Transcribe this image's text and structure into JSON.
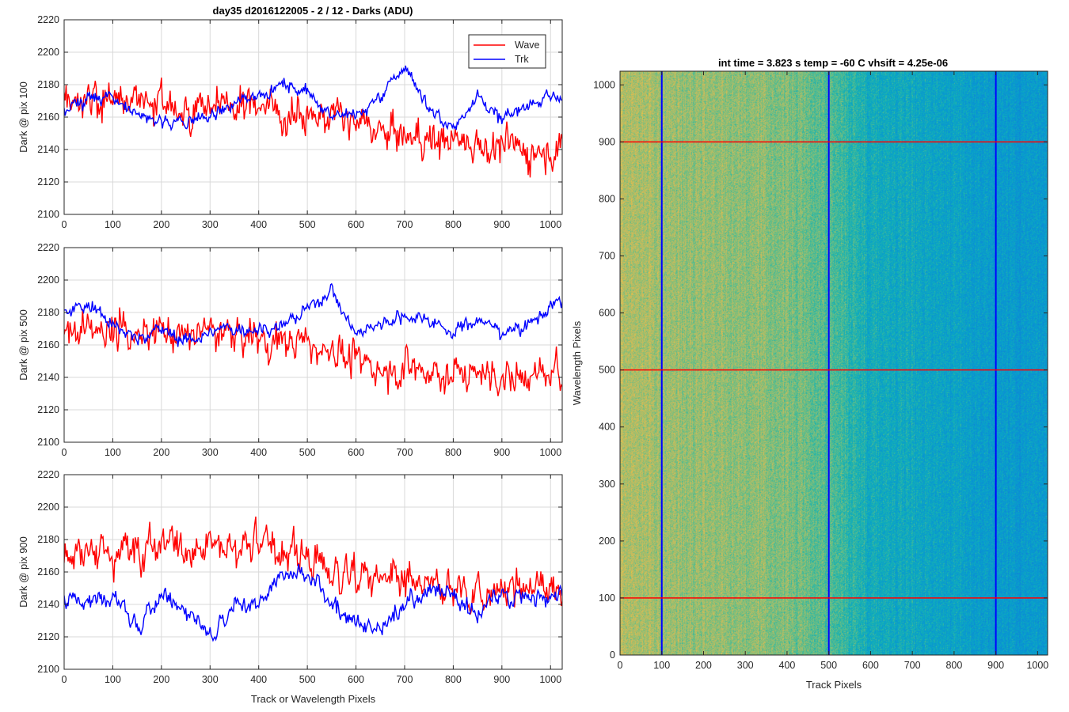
{
  "figure_title": "day35 d2016122005 - 2 / 12 - Darks (ADU)",
  "colors": {
    "wave": "#ff0000",
    "trk": "#0000ff",
    "grid": "#d9d9d9",
    "axis": "#262626"
  },
  "chart_data": [
    {
      "type": "line",
      "title": "day35 d2016122005 - 2 / 12 - Darks (ADU)",
      "xlabel": "",
      "ylabel": "Dark @ pix 100",
      "xlim": [
        0,
        1024
      ],
      "ylim": [
        2100,
        2220
      ],
      "xticks": [
        0,
        100,
        200,
        300,
        400,
        500,
        600,
        700,
        800,
        900,
        1000
      ],
      "yticks": [
        2100,
        2120,
        2140,
        2160,
        2180,
        2200,
        2220
      ],
      "grid": true,
      "legend": {
        "placement": "top-right",
        "entries": [
          "Wave",
          "Trk"
        ]
      },
      "x": [
        0,
        50,
        100,
        150,
        200,
        250,
        300,
        350,
        400,
        450,
        500,
        550,
        600,
        650,
        700,
        750,
        800,
        850,
        900,
        950,
        1024
      ],
      "series": [
        {
          "name": "Wave",
          "color": "#ff0000",
          "noise": 11,
          "values": [
            2172,
            2170,
            2168,
            2170,
            2168,
            2166,
            2168,
            2166,
            2170,
            2162,
            2162,
            2160,
            2156,
            2150,
            2148,
            2146,
            2146,
            2144,
            2142,
            2140,
            2140
          ]
        },
        {
          "name": "Trk",
          "color": "#0000ff",
          "noise": 4,
          "values": [
            2164,
            2170,
            2172,
            2162,
            2156,
            2158,
            2160,
            2168,
            2174,
            2180,
            2176,
            2162,
            2160,
            2172,
            2192,
            2166,
            2152,
            2174,
            2158,
            2168,
            2172
          ]
        }
      ]
    },
    {
      "type": "line",
      "title": "",
      "xlabel": "",
      "ylabel": "Dark @ pix 500",
      "xlim": [
        0,
        1024
      ],
      "ylim": [
        2100,
        2220
      ],
      "xticks": [
        0,
        100,
        200,
        300,
        400,
        500,
        600,
        700,
        800,
        900,
        1000
      ],
      "yticks": [
        2100,
        2120,
        2140,
        2160,
        2180,
        2200,
        2220
      ],
      "grid": true,
      "x": [
        0,
        50,
        100,
        150,
        200,
        250,
        300,
        350,
        400,
        450,
        500,
        550,
        600,
        650,
        700,
        750,
        800,
        850,
        900,
        950,
        1024
      ],
      "series": [
        {
          "name": "Wave",
          "color": "#ff0000",
          "noise": 10,
          "values": [
            2166,
            2172,
            2170,
            2168,
            2168,
            2166,
            2168,
            2166,
            2164,
            2162,
            2160,
            2158,
            2150,
            2146,
            2146,
            2144,
            2142,
            2142,
            2140,
            2140,
            2142
          ]
        },
        {
          "name": "Trk",
          "color": "#0000ff",
          "noise": 4,
          "values": [
            2180,
            2184,
            2172,
            2164,
            2170,
            2162,
            2168,
            2170,
            2170,
            2172,
            2182,
            2194,
            2166,
            2174,
            2178,
            2176,
            2168,
            2176,
            2168,
            2172,
            2188
          ]
        }
      ]
    },
    {
      "type": "line",
      "title": "",
      "xlabel": "Track or Wavelength Pixels",
      "ylabel": "Dark @ pix 900",
      "xlim": [
        0,
        1024
      ],
      "ylim": [
        2100,
        2220
      ],
      "xticks": [
        0,
        100,
        200,
        300,
        400,
        500,
        600,
        700,
        800,
        900,
        1000
      ],
      "yticks": [
        2100,
        2120,
        2140,
        2160,
        2180,
        2200,
        2220
      ],
      "grid": true,
      "x": [
        0,
        50,
        100,
        150,
        200,
        250,
        300,
        350,
        400,
        450,
        500,
        550,
        600,
        650,
        700,
        750,
        800,
        850,
        900,
        950,
        1024
      ],
      "series": [
        {
          "name": "Wave",
          "color": "#ff0000",
          "noise": 11,
          "values": [
            2176,
            2172,
            2172,
            2174,
            2176,
            2176,
            2176,
            2176,
            2176,
            2172,
            2170,
            2160,
            2156,
            2156,
            2152,
            2150,
            2148,
            2148,
            2148,
            2150,
            2150
          ]
        },
        {
          "name": "Trk",
          "color": "#0000ff",
          "noise": 5,
          "values": [
            2142,
            2142,
            2146,
            2124,
            2146,
            2138,
            2118,
            2142,
            2140,
            2160,
            2158,
            2138,
            2130,
            2124,
            2140,
            2152,
            2146,
            2134,
            2146,
            2144,
            2148
          ]
        }
      ]
    },
    {
      "type": "heatmap",
      "title": "int time = 3.823 s   temp = -60 C   vhsift = 4.25e-06",
      "xlabel": "Track Pixels",
      "ylabel": "Wavelength Pixels",
      "xlim": [
        0,
        1024
      ],
      "ylim": [
        0,
        1024
      ],
      "xticks": [
        0,
        100,
        200,
        300,
        400,
        500,
        600,
        700,
        800,
        900,
        1000
      ],
      "yticks": [
        0,
        100,
        200,
        300,
        400,
        500,
        600,
        700,
        800,
        900,
        1000
      ],
      "colormap": "parula",
      "column_profile": {
        "x": [
          0,
          100,
          200,
          300,
          400,
          500,
          600,
          700,
          800,
          900,
          1024
        ],
        "level": [
          0.78,
          0.74,
          0.74,
          0.72,
          0.7,
          0.64,
          0.53,
          0.51,
          0.48,
          0.45,
          0.44
        ]
      },
      "vertical_lines": {
        "track_pixels": [
          100,
          500,
          900
        ],
        "color": "#0000ff"
      },
      "horizontal_lines": {
        "wavelength_pixels": [
          100,
          500,
          900
        ],
        "color": "#ff0000"
      }
    }
  ]
}
